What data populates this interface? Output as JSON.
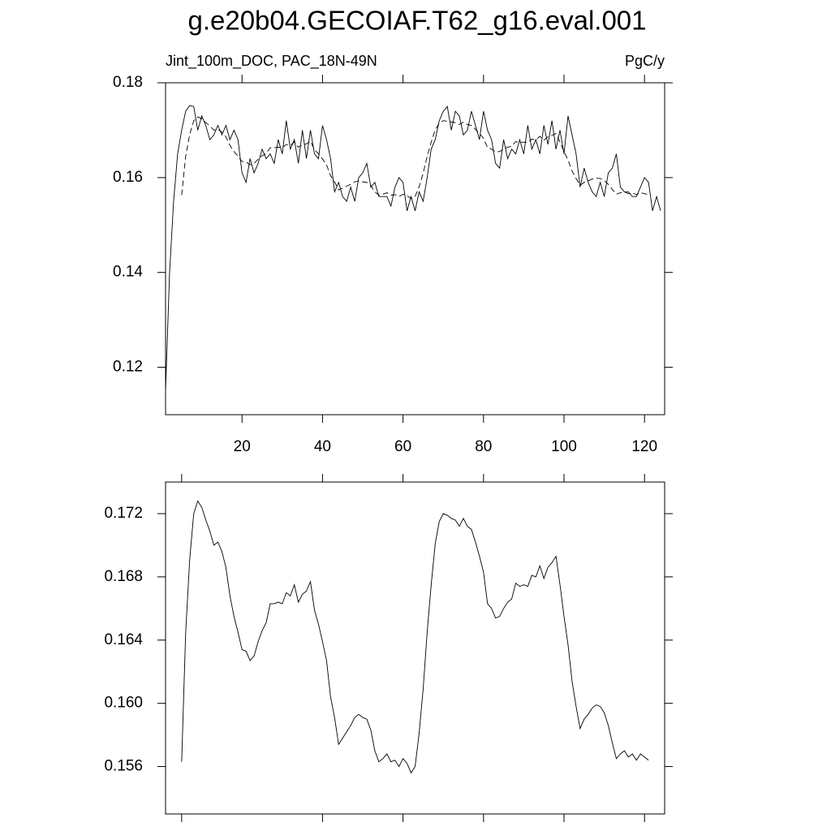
{
  "chart_data": [
    {
      "type": "line",
      "title": "g.e20b04.GECOIAF.T62_g16.eval.001",
      "left_string": "Jint_100m_DOC, PAC_18N-49N",
      "right_string": "PgC/y",
      "x": [
        1,
        2,
        3,
        4,
        5,
        6,
        7,
        8,
        9,
        10,
        11,
        12,
        13,
        14,
        15,
        16,
        17,
        18,
        19,
        20,
        21,
        22,
        23,
        24,
        25,
        26,
        27,
        28,
        29,
        30,
        31,
        32,
        33,
        34,
        35,
        36,
        37,
        38,
        39,
        40,
        41,
        42,
        43,
        44,
        45,
        46,
        47,
        48,
        49,
        50,
        51,
        52,
        53,
        54,
        55,
        56,
        57,
        58,
        59,
        60,
        61,
        62,
        63,
        64,
        65,
        66,
        67,
        68,
        69,
        70,
        71,
        72,
        73,
        74,
        75,
        76,
        77,
        78,
        79,
        80,
        81,
        82,
        83,
        84,
        85,
        86,
        87,
        88,
        89,
        90,
        91,
        92,
        93,
        94,
        95,
        96,
        97,
        98,
        99,
        100,
        101,
        102,
        103,
        104,
        105,
        106,
        107,
        108,
        109,
        110,
        111,
        112,
        113,
        114,
        115,
        116,
        117,
        118,
        119,
        120,
        121,
        122,
        123,
        124
      ],
      "xlim": [
        1,
        125
      ],
      "xticks": [
        20,
        40,
        60,
        80,
        100,
        120
      ],
      "xtick_labels": true,
      "ylim": [
        0.11,
        0.18
      ],
      "yticks": [
        0.12,
        0.14,
        0.16,
        0.18
      ],
      "series": [
        {
          "color": "#000000",
          "line_style": "solid",
          "values": [
            0.115,
            0.14,
            0.155,
            0.165,
            0.17,
            0.174,
            0.1752,
            0.175,
            0.17,
            0.173,
            0.171,
            0.168,
            0.169,
            0.171,
            0.169,
            0.171,
            0.168,
            0.17,
            0.168,
            0.161,
            0.159,
            0.164,
            0.161,
            0.163,
            0.166,
            0.164,
            0.165,
            0.163,
            0.168,
            0.165,
            0.172,
            0.166,
            0.168,
            0.163,
            0.17,
            0.164,
            0.17,
            0.165,
            0.164,
            0.171,
            0.168,
            0.164,
            0.157,
            0.159,
            0.156,
            0.155,
            0.158,
            0.155,
            0.16,
            0.161,
            0.163,
            0.158,
            0.159,
            0.156,
            0.156,
            0.156,
            0.154,
            0.158,
            0.16,
            0.159,
            0.153,
            0.156,
            0.153,
            0.157,
            0.155,
            0.16,
            0.166,
            0.168,
            0.172,
            0.174,
            0.175,
            0.17,
            0.174,
            0.173,
            0.169,
            0.17,
            0.174,
            0.171,
            0.168,
            0.174,
            0.17,
            0.168,
            0.163,
            0.162,
            0.168,
            0.164,
            0.166,
            0.165,
            0.168,
            0.165,
            0.171,
            0.166,
            0.168,
            0.165,
            0.171,
            0.167,
            0.172,
            0.166,
            0.17,
            0.165,
            0.173,
            0.169,
            0.165,
            0.158,
            0.162,
            0.159,
            0.157,
            0.156,
            0.159,
            0.156,
            0.161,
            0.162,
            0.165,
            0.158,
            0.157,
            0.157,
            0.156,
            0.156,
            0.158,
            0.16,
            0.159,
            0.153,
            0.156,
            0.153
          ]
        },
        {
          "color": "#000000",
          "line_style": "dashed",
          "values": [
            null,
            null,
            null,
            null,
            0.1563,
            0.1645,
            0.1691,
            0.172,
            0.1728,
            0.1724,
            0.1716,
            0.1709,
            0.17,
            0.1702,
            0.1696,
            0.1686,
            0.1668,
            0.1655,
            0.1645,
            0.1634,
            0.1633,
            0.1627,
            0.163,
            0.1639,
            0.1646,
            0.1651,
            0.1663,
            0.1663,
            0.1664,
            0.1663,
            0.167,
            0.1668,
            0.1675,
            0.1664,
            0.1669,
            0.1671,
            0.1677,
            0.1659,
            0.165,
            0.1639,
            0.1627,
            0.1604,
            0.1591,
            0.1574,
            0.1578,
            0.1582,
            0.1586,
            0.1591,
            0.1593,
            0.1591,
            0.159,
            0.1583,
            0.157,
            0.1563,
            0.1565,
            0.1568,
            0.1563,
            0.1564,
            0.156,
            0.1565,
            0.1562,
            0.1556,
            0.156,
            0.1581,
            0.1609,
            0.1645,
            0.1675,
            0.1701,
            0.1715,
            0.172,
            0.1719,
            0.1717,
            0.1716,
            0.1712,
            0.1717,
            0.1712,
            0.171,
            0.1702,
            0.1693,
            0.1683,
            0.1663,
            0.166,
            0.1654,
            0.1655,
            0.166,
            0.1664,
            0.1666,
            0.1676,
            0.1674,
            0.1675,
            0.1674,
            0.1681,
            0.168,
            0.1687,
            0.1679,
            0.1686,
            0.1689,
            0.1693,
            0.1675,
            0.1655,
            0.1637,
            0.1614,
            0.1598,
            0.1584,
            0.159,
            0.1593,
            0.1597,
            0.1599,
            0.1598,
            0.1594,
            0.1586,
            0.1575,
            0.1565,
            0.1568,
            0.157,
            0.1566,
            0.1568,
            0.1564,
            0.1568,
            0.1566,
            0.1564,
            null,
            null,
            null
          ]
        }
      ]
    },
    {
      "type": "line",
      "x": [
        1,
        2,
        3,
        4,
        5,
        6,
        7,
        8,
        9,
        10,
        11,
        12,
        13,
        14,
        15,
        16,
        17,
        18,
        19,
        20,
        21,
        22,
        23,
        24,
        25,
        26,
        27,
        28,
        29,
        30,
        31,
        32,
        33,
        34,
        35,
        36,
        37,
        38,
        39,
        40,
        41,
        42,
        43,
        44,
        45,
        46,
        47,
        48,
        49,
        50,
        51,
        52,
        53,
        54,
        55,
        56,
        57,
        58,
        59,
        60,
        61,
        62,
        63,
        64,
        65,
        66,
        67,
        68,
        69,
        70,
        71,
        72,
        73,
        74,
        75,
        76,
        77,
        78,
        79,
        80,
        81,
        82,
        83,
        84,
        85,
        86,
        87,
        88,
        89,
        90,
        91,
        92,
        93,
        94,
        95,
        96,
        97,
        98,
        99,
        100,
        101,
        102,
        103,
        104,
        105,
        106,
        107,
        108,
        109,
        110,
        111,
        112,
        113,
        114,
        115,
        116,
        117,
        118,
        119,
        120,
        121,
        122,
        123,
        124
      ],
      "xlim": [
        1,
        125
      ],
      "xticks": [
        5,
        40,
        60,
        80,
        100,
        120
      ],
      "xtick_labels": false,
      "ylim": [
        0.153,
        0.174
      ],
      "yticks": [
        0.156,
        {
          "value": 0.16,
          "label": "0.160"
        },
        0.164,
        0.168,
        0.172
      ],
      "series": [
        {
          "color": "#000000",
          "line_style": "solid",
          "values": [
            null,
            null,
            null,
            null,
            0.1563,
            0.1645,
            0.1691,
            0.172,
            0.1728,
            0.1724,
            0.1716,
            0.1709,
            0.17,
            0.1702,
            0.1696,
            0.1686,
            0.1668,
            0.1655,
            0.1645,
            0.1634,
            0.1633,
            0.1627,
            0.163,
            0.1639,
            0.1646,
            0.1651,
            0.1663,
            0.1663,
            0.1664,
            0.1663,
            0.167,
            0.1668,
            0.1675,
            0.1664,
            0.1669,
            0.1671,
            0.1677,
            0.1659,
            0.165,
            0.1639,
            0.1627,
            0.1604,
            0.1591,
            0.1574,
            0.1578,
            0.1582,
            0.1586,
            0.1591,
            0.1593,
            0.1591,
            0.159,
            0.1583,
            0.157,
            0.1563,
            0.1565,
            0.1568,
            0.1563,
            0.1564,
            0.156,
            0.1565,
            0.1562,
            0.1556,
            0.156,
            0.1581,
            0.1609,
            0.1645,
            0.1675,
            0.1701,
            0.1715,
            0.172,
            0.1719,
            0.1717,
            0.1716,
            0.1712,
            0.1717,
            0.1712,
            0.171,
            0.1702,
            0.1693,
            0.1683,
            0.1663,
            0.166,
            0.1654,
            0.1655,
            0.166,
            0.1664,
            0.1666,
            0.1676,
            0.1674,
            0.1675,
            0.1674,
            0.1681,
            0.168,
            0.1687,
            0.1679,
            0.1686,
            0.1689,
            0.1693,
            0.1675,
            0.1655,
            0.1637,
            0.1614,
            0.1598,
            0.1584,
            0.159,
            0.1593,
            0.1597,
            0.1599,
            0.1598,
            0.1594,
            0.1586,
            0.1575,
            0.1565,
            0.1568,
            0.157,
            0.1566,
            0.1568,
            0.1564,
            0.1568,
            0.1566,
            0.1564,
            null,
            null,
            null
          ]
        }
      ]
    }
  ]
}
